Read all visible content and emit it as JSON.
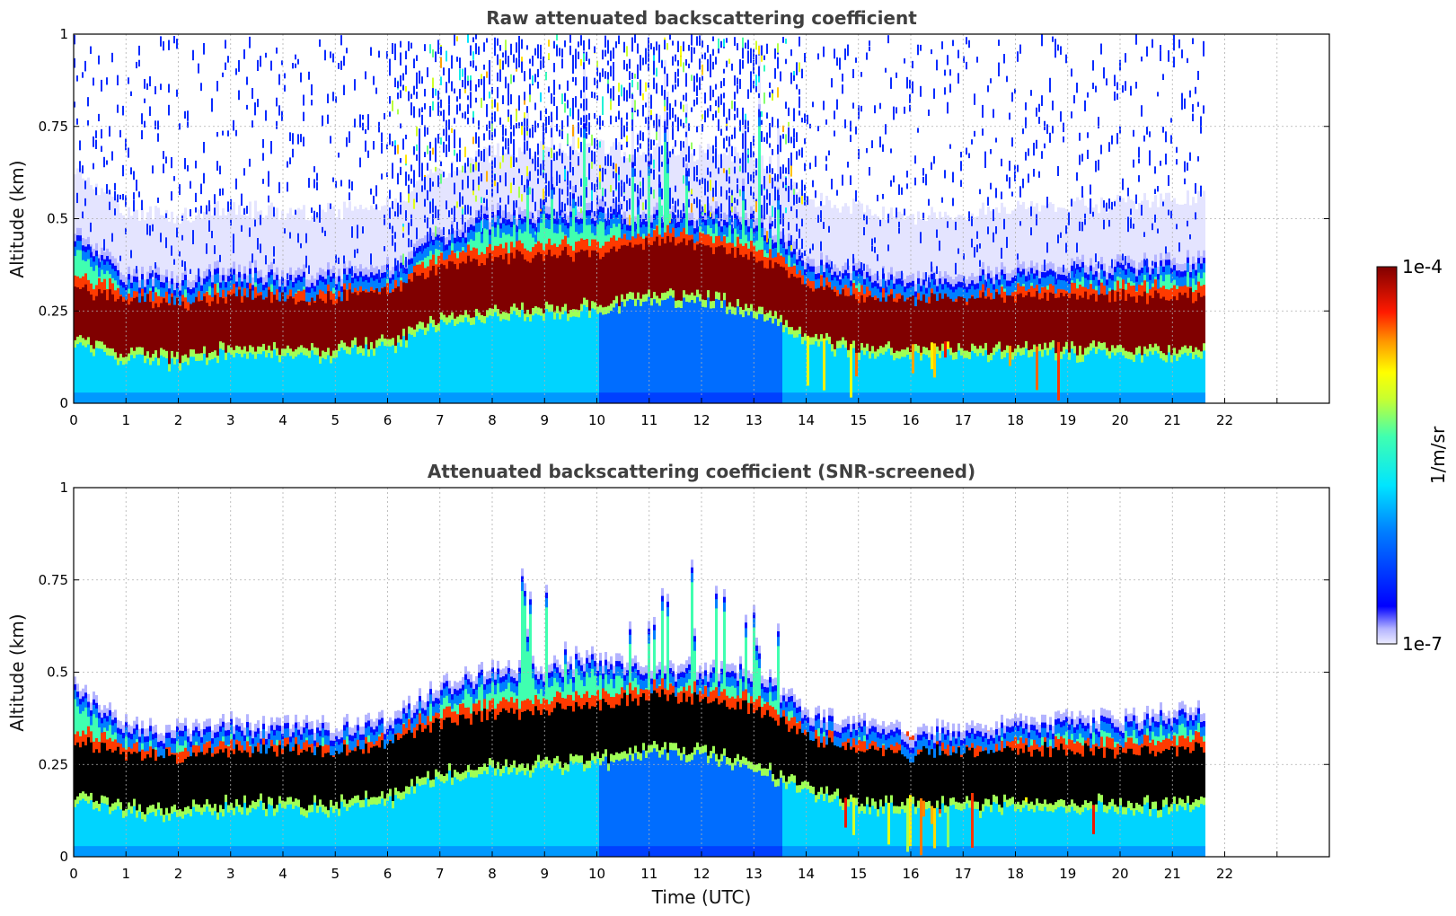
{
  "chart_data": [
    {
      "type": "heatmap",
      "title": "Raw attenuated backscattering coefficient",
      "xlabel": "",
      "ylabel": "Altitude (km)",
      "xlim": [
        0,
        24
      ],
      "ylim": [
        0,
        1
      ],
      "x_ticks": [
        "0",
        "1",
        "2",
        "3",
        "4",
        "5",
        "6",
        "7",
        "8",
        "9",
        "10",
        "11",
        "12",
        "13",
        "14",
        "15",
        "16",
        "17",
        "18",
        "19",
        "20",
        "21",
        "22"
      ],
      "y_ticks": [
        "0",
        "0.25",
        "0.5",
        "0.75",
        "1"
      ],
      "grid": true,
      "data_end_x": 21.65,
      "layer_center_km": [
        [
          0,
          0.24
        ],
        [
          1,
          0.21
        ],
        [
          2,
          0.2
        ],
        [
          3,
          0.22
        ],
        [
          4,
          0.22
        ],
        [
          5,
          0.22
        ],
        [
          6,
          0.24
        ],
        [
          7,
          0.3
        ],
        [
          8,
          0.32
        ],
        [
          9,
          0.33
        ],
        [
          10,
          0.34
        ],
        [
          11,
          0.37
        ],
        [
          12,
          0.36
        ],
        [
          13,
          0.33
        ],
        [
          14,
          0.26
        ],
        [
          15,
          0.22
        ],
        [
          16,
          0.22
        ],
        [
          17,
          0.22
        ],
        [
          18,
          0.22
        ],
        [
          19,
          0.22
        ],
        [
          20,
          0.22
        ],
        [
          21,
          0.22
        ]
      ],
      "layer_top_km": [
        [
          0,
          0.45
        ],
        [
          1,
          0.34
        ],
        [
          2,
          0.33
        ],
        [
          3,
          0.35
        ],
        [
          4,
          0.34
        ],
        [
          5,
          0.34
        ],
        [
          6,
          0.36
        ],
        [
          7,
          0.45
        ],
        [
          8,
          0.5
        ],
        [
          9,
          0.5
        ],
        [
          10,
          0.52
        ],
        [
          11,
          0.5
        ],
        [
          12,
          0.5
        ],
        [
          13,
          0.5
        ],
        [
          14,
          0.38
        ],
        [
          15,
          0.35
        ],
        [
          16,
          0.32
        ],
        [
          17,
          0.34
        ],
        [
          18,
          0.35
        ],
        [
          19,
          0.36
        ],
        [
          20,
          0.36
        ],
        [
          21,
          0.38
        ]
      ],
      "screened": false
    },
    {
      "type": "heatmap",
      "title": "Attenuated backscattering coefficient (SNR-screened)",
      "xlabel": "Time (UTC)",
      "ylabel": "Altitude (km)",
      "xlim": [
        0,
        24
      ],
      "ylim": [
        0,
        1
      ],
      "x_ticks": [
        "0",
        "1",
        "2",
        "3",
        "4",
        "5",
        "6",
        "7",
        "8",
        "9",
        "10",
        "11",
        "12",
        "13",
        "14",
        "15",
        "16",
        "17",
        "18",
        "19",
        "20",
        "21",
        "22"
      ],
      "y_ticks": [
        "0",
        "0.25",
        "0.5",
        "0.75",
        "1"
      ],
      "grid": true,
      "data_end_x": 21.65,
      "screened": true
    }
  ],
  "colorbar": {
    "label": "1/m/sr",
    "max_label": "1e-4",
    "min_label": "1e-7",
    "colormap": "jet",
    "scale": "log"
  }
}
